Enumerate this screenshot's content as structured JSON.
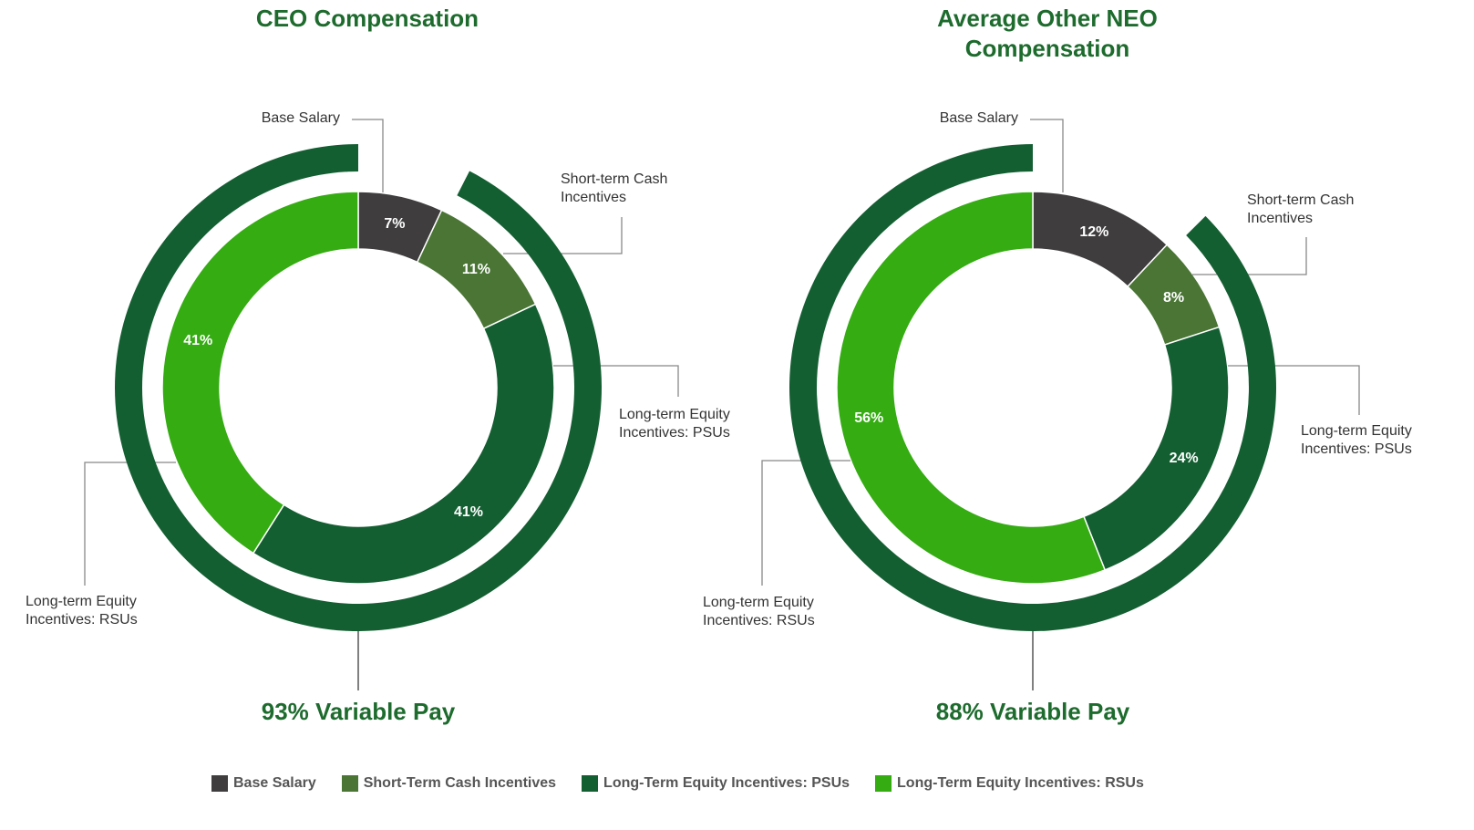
{
  "chart_data": [
    {
      "type": "donut",
      "title": "CEO Compensation",
      "categories": [
        "Base Salary",
        "Short-term Cash Incentives",
        "Long-term Equity Incentives: PSUs",
        "Long-term Equity Incentives: RSUs"
      ],
      "values": [
        7,
        11,
        41,
        41
      ],
      "value_labels": [
        "7%",
        "11%",
        "41%",
        "41%"
      ],
      "colors": [
        "#403d3e",
        "#4a7535",
        "#145f32",
        "#34ac12"
      ],
      "annotation": "93% Variable Pay"
    },
    {
      "type": "donut",
      "title": "Average Other NEO Compensation",
      "categories": [
        "Base Salary",
        "Short-term Cash Incentives",
        "Long-term Equity Incentives: PSUs",
        "Long-term Equity Incentives: RSUs"
      ],
      "values": [
        12,
        8,
        24,
        56
      ],
      "value_labels": [
        "12%",
        "8%",
        "24%",
        "56%"
      ],
      "colors": [
        "#403d3e",
        "#4a7535",
        "#145f32",
        "#34ac12"
      ],
      "annotation": "88% Variable Pay"
    }
  ],
  "legend": [
    {
      "label": "Base Salary",
      "color": "#403d3e"
    },
    {
      "label": "Short-Term Cash Incentives",
      "color": "#4a7535"
    },
    {
      "label": "Long-Term Equity Incentives: PSUs",
      "color": "#145f32"
    },
    {
      "label": "Long-Term Equity Incentives: RSUs",
      "color": "#34ac12"
    }
  ]
}
